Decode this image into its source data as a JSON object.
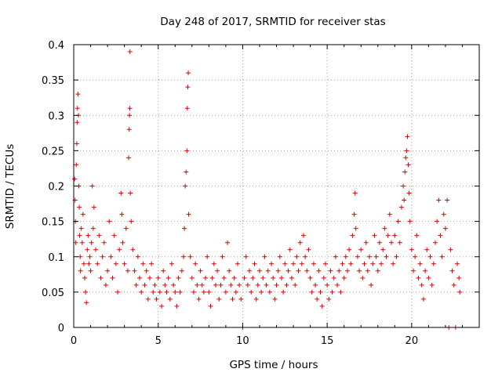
{
  "chart_data": {
    "type": "scatter",
    "title": "Day 248 of 2017, SRMTID for receiver stas",
    "xlabel": "GPS time / hours",
    "ylabel": "SRMTID / TECUs",
    "xlim": [
      0,
      24
    ],
    "ylim": [
      0,
      0.4
    ],
    "xticks": [
      0,
      5,
      10,
      15,
      20
    ],
    "yticks": [
      0,
      0.05,
      0.1,
      0.15,
      0.2,
      0.25,
      0.3,
      0.35,
      0.4
    ],
    "xtick_labels": [
      "0",
      "5",
      "10",
      "15",
      "20"
    ],
    "ytick_labels": [
      "0",
      "0.05",
      "0.1",
      "0.15",
      "0.2",
      "0.25",
      "0.3",
      "0.35",
      "0.4"
    ],
    "grid": true,
    "marker": "+",
    "series": [
      {
        "name": "stas",
        "color": "#e00000",
        "points": [
          [
            0.05,
            0.21
          ],
          [
            0.08,
            0.18
          ],
          [
            0.1,
            0.15
          ],
          [
            0.12,
            0.12
          ],
          [
            0.15,
            0.23
          ],
          [
            0.18,
            0.26
          ],
          [
            0.2,
            0.29
          ],
          [
            0.22,
            0.31
          ],
          [
            0.25,
            0.33
          ],
          [
            0.28,
            0.3
          ],
          [
            0.3,
            0.2
          ],
          [
            0.33,
            0.17
          ],
          [
            0.35,
            0.13
          ],
          [
            0.38,
            0.1
          ],
          [
            0.4,
            0.08
          ],
          [
            0.45,
            0.14
          ],
          [
            0.5,
            0.12
          ],
          [
            0.55,
            0.16
          ],
          [
            0.6,
            0.09
          ],
          [
            0.65,
            0.07
          ],
          [
            0.7,
            0.05
          ],
          [
            0.75,
            0.035
          ],
          [
            0.8,
            0.11
          ],
          [
            0.85,
            0.13
          ],
          [
            0.9,
            0.09
          ],
          [
            0.95,
            0.1
          ],
          [
            1.0,
            0.08
          ],
          [
            1.05,
            0.12
          ],
          [
            1.1,
            0.2
          ],
          [
            1.15,
            0.14
          ],
          [
            1.2,
            0.17
          ],
          [
            1.3,
            0.11
          ],
          [
            1.4,
            0.09
          ],
          [
            1.5,
            0.13
          ],
          [
            1.6,
            0.07
          ],
          [
            1.7,
            0.1
          ],
          [
            1.8,
            0.12
          ],
          [
            1.9,
            0.06
          ],
          [
            2.0,
            0.08
          ],
          [
            2.1,
            0.15
          ],
          [
            2.2,
            0.1
          ],
          [
            2.3,
            0.07
          ],
          [
            2.4,
            0.13
          ],
          [
            2.5,
            0.09
          ],
          [
            2.6,
            0.05
          ],
          [
            2.7,
            0.11
          ],
          [
            2.8,
            0.19
          ],
          [
            2.85,
            0.16
          ],
          [
            2.9,
            0.12
          ],
          [
            3.0,
            0.09
          ],
          [
            3.1,
            0.14
          ],
          [
            3.2,
            0.08
          ],
          [
            3.25,
            0.24
          ],
          [
            3.28,
            0.28
          ],
          [
            3.3,
            0.3
          ],
          [
            3.32,
            0.31
          ],
          [
            3.33,
            0.39
          ],
          [
            3.35,
            0.19
          ],
          [
            3.4,
            0.15
          ],
          [
            3.5,
            0.11
          ],
          [
            3.6,
            0.08
          ],
          [
            3.7,
            0.06
          ],
          [
            3.8,
            0.1
          ],
          [
            3.9,
            0.07
          ],
          [
            4.0,
            0.05
          ],
          [
            4.1,
            0.09
          ],
          [
            4.2,
            0.06
          ],
          [
            4.3,
            0.08
          ],
          [
            4.4,
            0.04
          ],
          [
            4.5,
            0.07
          ],
          [
            4.6,
            0.09
          ],
          [
            4.7,
            0.05
          ],
          [
            4.8,
            0.06
          ],
          [
            4.9,
            0.04
          ],
          [
            5.0,
            0.07
          ],
          [
            5.1,
            0.05
          ],
          [
            5.2,
            0.03
          ],
          [
            5.3,
            0.08
          ],
          [
            5.4,
            0.06
          ],
          [
            5.5,
            0.05
          ],
          [
            5.6,
            0.07
          ],
          [
            5.7,
            0.04
          ],
          [
            5.8,
            0.09
          ],
          [
            5.9,
            0.06
          ],
          [
            6.0,
            0.05
          ],
          [
            6.1,
            0.03
          ],
          [
            6.2,
            0.07
          ],
          [
            6.3,
            0.05
          ],
          [
            6.4,
            0.08
          ],
          [
            6.5,
            0.1
          ],
          [
            6.55,
            0.14
          ],
          [
            6.6,
            0.2
          ],
          [
            6.65,
            0.22
          ],
          [
            6.7,
            0.25
          ],
          [
            6.72,
            0.31
          ],
          [
            6.75,
            0.34
          ],
          [
            6.78,
            0.36
          ],
          [
            6.8,
            0.16
          ],
          [
            6.9,
            0.1
          ],
          [
            7.0,
            0.07
          ],
          [
            7.1,
            0.05
          ],
          [
            7.2,
            0.09
          ],
          [
            7.3,
            0.06
          ],
          [
            7.4,
            0.04
          ],
          [
            7.5,
            0.08
          ],
          [
            7.6,
            0.06
          ],
          [
            7.7,
            0.05
          ],
          [
            7.8,
            0.07
          ],
          [
            7.9,
            0.1
          ],
          [
            8.0,
            0.05
          ],
          [
            8.1,
            0.03
          ],
          [
            8.2,
            0.07
          ],
          [
            8.3,
            0.09
          ],
          [
            8.4,
            0.06
          ],
          [
            8.5,
            0.08
          ],
          [
            8.6,
            0.04
          ],
          [
            8.7,
            0.06
          ],
          [
            8.8,
            0.1
          ],
          [
            8.9,
            0.07
          ],
          [
            9.0,
            0.05
          ],
          [
            9.1,
            0.12
          ],
          [
            9.2,
            0.08
          ],
          [
            9.3,
            0.06
          ],
          [
            9.4,
            0.04
          ],
          [
            9.5,
            0.07
          ],
          [
            9.6,
            0.05
          ],
          [
            9.7,
            0.09
          ],
          [
            9.8,
            0.06
          ],
          [
            9.9,
            0.04
          ],
          [
            10.0,
            0.0
          ],
          [
            10.1,
            0.07
          ],
          [
            10.2,
            0.1
          ],
          [
            10.3,
            0.06
          ],
          [
            10.4,
            0.08
          ],
          [
            10.5,
            0.05
          ],
          [
            10.6,
            0.07
          ],
          [
            10.7,
            0.09
          ],
          [
            10.8,
            0.04
          ],
          [
            10.9,
            0.06
          ],
          [
            11.0,
            0.08
          ],
          [
            11.1,
            0.05
          ],
          [
            11.2,
            0.07
          ],
          [
            11.3,
            0.1
          ],
          [
            11.4,
            0.06
          ],
          [
            11.5,
            0.08
          ],
          [
            11.6,
            0.05
          ],
          [
            11.7,
            0.09
          ],
          [
            11.8,
            0.07
          ],
          [
            11.9,
            0.04
          ],
          [
            12.0,
            0.06
          ],
          [
            12.1,
            0.08
          ],
          [
            12.2,
            0.1
          ],
          [
            12.3,
            0.07
          ],
          [
            12.4,
            0.05
          ],
          [
            12.5,
            0.09
          ],
          [
            12.6,
            0.06
          ],
          [
            12.7,
            0.08
          ],
          [
            12.8,
            0.11
          ],
          [
            12.9,
            0.07
          ],
          [
            13.0,
            0.09
          ],
          [
            13.1,
            0.06
          ],
          [
            13.2,
            0.1
          ],
          [
            13.3,
            0.08
          ],
          [
            13.4,
            0.12
          ],
          [
            13.5,
            0.09
          ],
          [
            13.6,
            0.13
          ],
          [
            13.7,
            0.1
          ],
          [
            13.8,
            0.08
          ],
          [
            13.9,
            0.11
          ],
          [
            14.0,
            0.07
          ],
          [
            14.1,
            0.05
          ],
          [
            14.2,
            0.09
          ],
          [
            14.3,
            0.06
          ],
          [
            14.4,
            0.04
          ],
          [
            14.5,
            0.08
          ],
          [
            14.6,
            0.05
          ],
          [
            14.7,
            0.03
          ],
          [
            14.8,
            0.07
          ],
          [
            14.9,
            0.09
          ],
          [
            15.0,
            0.06
          ],
          [
            15.1,
            0.04
          ],
          [
            15.2,
            0.08
          ],
          [
            15.3,
            0.05
          ],
          [
            15.4,
            0.07
          ],
          [
            15.5,
            0.1
          ],
          [
            15.6,
            0.06
          ],
          [
            15.7,
            0.08
          ],
          [
            15.8,
            0.05
          ],
          [
            15.9,
            0.09
          ],
          [
            16.0,
            0.07
          ],
          [
            16.1,
            0.1
          ],
          [
            16.2,
            0.08
          ],
          [
            16.3,
            0.11
          ],
          [
            16.4,
            0.09
          ],
          [
            16.5,
            0.13
          ],
          [
            16.6,
            0.16
          ],
          [
            16.65,
            0.19
          ],
          [
            16.7,
            0.14
          ],
          [
            16.8,
            0.1
          ],
          [
            16.9,
            0.08
          ],
          [
            17.0,
            0.11
          ],
          [
            17.1,
            0.07
          ],
          [
            17.2,
            0.09
          ],
          [
            17.3,
            0.12
          ],
          [
            17.4,
            0.08
          ],
          [
            17.5,
            0.1
          ],
          [
            17.6,
            0.06
          ],
          [
            17.7,
            0.09
          ],
          [
            17.8,
            0.13
          ],
          [
            17.9,
            0.1
          ],
          [
            18.0,
            0.08
          ],
          [
            18.1,
            0.12
          ],
          [
            18.2,
            0.09
          ],
          [
            18.3,
            0.11
          ],
          [
            18.4,
            0.14
          ],
          [
            18.5,
            0.1
          ],
          [
            18.6,
            0.13
          ],
          [
            18.7,
            0.16
          ],
          [
            18.8,
            0.12
          ],
          [
            18.9,
            0.09
          ],
          [
            19.0,
            0.13
          ],
          [
            19.1,
            0.1
          ],
          [
            19.2,
            0.15
          ],
          [
            19.3,
            0.12
          ],
          [
            19.4,
            0.17
          ],
          [
            19.5,
            0.2
          ],
          [
            19.55,
            0.18
          ],
          [
            19.6,
            0.22
          ],
          [
            19.65,
            0.24
          ],
          [
            19.7,
            0.25
          ],
          [
            19.75,
            0.27
          ],
          [
            19.8,
            0.23
          ],
          [
            19.85,
            0.19
          ],
          [
            19.9,
            0.15
          ],
          [
            20.0,
            0.11
          ],
          [
            20.1,
            0.08
          ],
          [
            20.2,
            0.1
          ],
          [
            20.3,
            0.13
          ],
          [
            20.4,
            0.07
          ],
          [
            20.5,
            0.09
          ],
          [
            20.6,
            0.06
          ],
          [
            20.7,
            0.04
          ],
          [
            20.8,
            0.08
          ],
          [
            20.9,
            0.11
          ],
          [
            21.0,
            0.07
          ],
          [
            21.1,
            0.1
          ],
          [
            21.2,
            0.06
          ],
          [
            21.3,
            0.09
          ],
          [
            21.4,
            0.12
          ],
          [
            21.5,
            0.15
          ],
          [
            21.6,
            0.18
          ],
          [
            21.7,
            0.13
          ],
          [
            21.8,
            0.1
          ],
          [
            21.9,
            0.16
          ],
          [
            22.0,
            0.14
          ],
          [
            22.1,
            0.18
          ],
          [
            22.2,
            0.0
          ],
          [
            22.3,
            0.11
          ],
          [
            22.4,
            0.08
          ],
          [
            22.5,
            0.06
          ],
          [
            22.6,
            0.0
          ],
          [
            22.7,
            0.09
          ],
          [
            22.8,
            0.07
          ],
          [
            22.85,
            0.05
          ]
        ]
      }
    ]
  }
}
